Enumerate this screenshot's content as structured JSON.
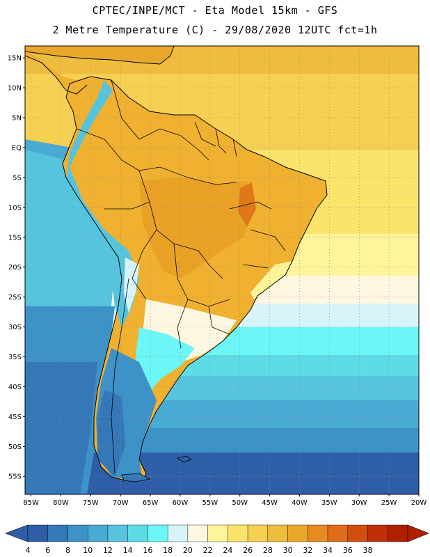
{
  "header": {
    "line1": "CPTEC/INPE/MCT -  Eta Model 15km - GFS",
    "line2": "2 Metre Temperature (C) - 29/08/2020 12UTC fct=1h"
  },
  "map": {
    "lat_range": [
      -58,
      17
    ],
    "lon_range": [
      -86,
      -20
    ],
    "lat_ticks": [
      {
        "value": 15,
        "label": "15N"
      },
      {
        "value": 10,
        "label": "10N"
      },
      {
        "value": 5,
        "label": "5N"
      },
      {
        "value": 0,
        "label": "EQ"
      },
      {
        "value": -5,
        "label": "5S"
      },
      {
        "value": -10,
        "label": "10S"
      },
      {
        "value": -15,
        "label": "15S"
      },
      {
        "value": -20,
        "label": "20S"
      },
      {
        "value": -25,
        "label": "25S"
      },
      {
        "value": -30,
        "label": "30S"
      },
      {
        "value": -35,
        "label": "35S"
      },
      {
        "value": -40,
        "label": "40S"
      },
      {
        "value": -45,
        "label": "45S"
      },
      {
        "value": -50,
        "label": "50S"
      },
      {
        "value": -55,
        "label": "55S"
      }
    ],
    "lon_ticks": [
      {
        "value": -85,
        "label": "85W"
      },
      {
        "value": -80,
        "label": "80W"
      },
      {
        "value": -75,
        "label": "75W"
      },
      {
        "value": -70,
        "label": "70W"
      },
      {
        "value": -65,
        "label": "65W"
      },
      {
        "value": -60,
        "label": "60W"
      },
      {
        "value": -55,
        "label": "55W"
      },
      {
        "value": -50,
        "label": "50W"
      },
      {
        "value": -45,
        "label": "45W"
      },
      {
        "value": -40,
        "label": "40W"
      },
      {
        "value": -35,
        "label": "35W"
      },
      {
        "value": -30,
        "label": "30W"
      },
      {
        "value": -25,
        "label": "25W"
      },
      {
        "value": -20,
        "label": "20W"
      }
    ]
  },
  "colorbar": {
    "labels": [
      "4",
      "6",
      "8",
      "10",
      "12",
      "14",
      "16",
      "18",
      "20",
      "22",
      "24",
      "26",
      "28",
      "30",
      "32",
      "34",
      "36",
      "38"
    ],
    "colors": [
      "#2f5ea8",
      "#3478b8",
      "#3d92c8",
      "#49aad4",
      "#57c4de",
      "#5bdce6",
      "#6cf6f6",
      "#d6f4fa",
      "#fdf7e2",
      "#fef49a",
      "#fbe46a",
      "#f6d052",
      "#efbd3e",
      "#eaa82a",
      "#e88a22",
      "#e06c1a",
      "#d24e10",
      "#c03008",
      "#b02000"
    ],
    "under_color": "#2f5ea8",
    "over_color": "#b02000"
  },
  "colors": {
    "land_warm": "#f0b030",
    "ocean_cold": "#2f5ea8",
    "border": "#000000",
    "grid": "#888888"
  }
}
